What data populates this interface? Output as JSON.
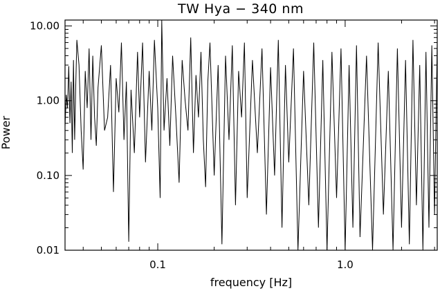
{
  "chart_data": {
    "type": "line",
    "title": "TW Hya − 340 nm",
    "xlabel": "frequency [Hz]",
    "ylabel": "Power",
    "x_scale": "log",
    "y_scale": "log",
    "xlim": [
      0.032,
      3.1
    ],
    "ylim": [
      0.01,
      12.0
    ],
    "x_ticks": [
      {
        "value": 0.1,
        "label": "0.1"
      },
      {
        "value": 1.0,
        "label": "1.0"
      }
    ],
    "y_ticks": [
      {
        "value": 0.01,
        "label": "0.01"
      },
      {
        "value": 0.1,
        "label": "0.10"
      },
      {
        "value": 1.0,
        "label": "1.00"
      },
      {
        "value": 10.0,
        "label": "10.00"
      }
    ],
    "grid": false,
    "legend": "none",
    "series": [
      {
        "color": "#000000",
        "x": [
          0.032,
          0.0325,
          0.033,
          0.0335,
          0.034,
          0.0345,
          0.035,
          0.0355,
          0.036,
          0.0365,
          0.037,
          0.038,
          0.039,
          0.04,
          0.041,
          0.042,
          0.043,
          0.044,
          0.045,
          0.046,
          0.047,
          0.048,
          0.05,
          0.052,
          0.054,
          0.056,
          0.058,
          0.06,
          0.062,
          0.064,
          0.066,
          0.068,
          0.07,
          0.072,
          0.075,
          0.078,
          0.08,
          0.083,
          0.086,
          0.09,
          0.093,
          0.096,
          0.1,
          0.103,
          0.105,
          0.108,
          0.112,
          0.116,
          0.12,
          0.125,
          0.13,
          0.135,
          0.14,
          0.145,
          0.15,
          0.155,
          0.16,
          0.165,
          0.17,
          0.175,
          0.18,
          0.185,
          0.19,
          0.2,
          0.21,
          0.22,
          0.23,
          0.24,
          0.25,
          0.26,
          0.27,
          0.28,
          0.29,
          0.3,
          0.32,
          0.34,
          0.36,
          0.38,
          0.4,
          0.42,
          0.44,
          0.46,
          0.48,
          0.5,
          0.53,
          0.56,
          0.6,
          0.64,
          0.68,
          0.72,
          0.76,
          0.8,
          0.85,
          0.9,
          0.95,
          1.0,
          1.05,
          1.1,
          1.15,
          1.2,
          1.3,
          1.4,
          1.5,
          1.6,
          1.7,
          1.8,
          1.9,
          2.0,
          2.1,
          2.2,
          2.3,
          2.4,
          2.5,
          2.6,
          2.7,
          2.8,
          2.9,
          3.0,
          3.1
        ],
        "y": [
          0.45,
          1.2,
          0.8,
          2.9,
          0.5,
          1.8,
          0.2,
          3.5,
          0.3,
          1.6,
          6.5,
          3.0,
          0.4,
          0.12,
          2.5,
          0.8,
          5.0,
          0.3,
          4.0,
          0.6,
          0.25,
          1.5,
          5.5,
          0.4,
          0.6,
          3.0,
          0.06,
          2.0,
          0.7,
          6.0,
          0.3,
          1.8,
          0.013,
          1.4,
          0.2,
          4.5,
          0.6,
          6.0,
          0.15,
          2.5,
          0.4,
          6.5,
          0.8,
          0.05,
          12.0,
          0.4,
          2.0,
          0.25,
          4.0,
          0.6,
          0.08,
          3.5,
          1.0,
          0.4,
          7.0,
          0.2,
          2.2,
          0.6,
          4.5,
          0.3,
          0.07,
          1.8,
          6.0,
          0.1,
          3.0,
          0.012,
          4.0,
          0.3,
          5.5,
          0.04,
          2.5,
          0.6,
          6.0,
          0.05,
          3.5,
          0.2,
          5.0,
          0.03,
          2.8,
          0.1,
          6.5,
          0.02,
          3.0,
          0.15,
          5.0,
          0.01,
          2.5,
          0.04,
          6.0,
          0.02,
          3.5,
          0.01,
          4.5,
          0.05,
          5.0,
          0.01,
          3.0,
          0.02,
          5.5,
          0.015,
          4.0,
          0.01,
          6.0,
          0.03,
          2.5,
          0.01,
          5.0,
          0.02,
          3.5,
          0.012,
          6.5,
          0.04,
          3.0,
          0.01,
          4.5,
          0.02,
          5.5,
          0.03,
          6.0
        ]
      }
    ]
  }
}
